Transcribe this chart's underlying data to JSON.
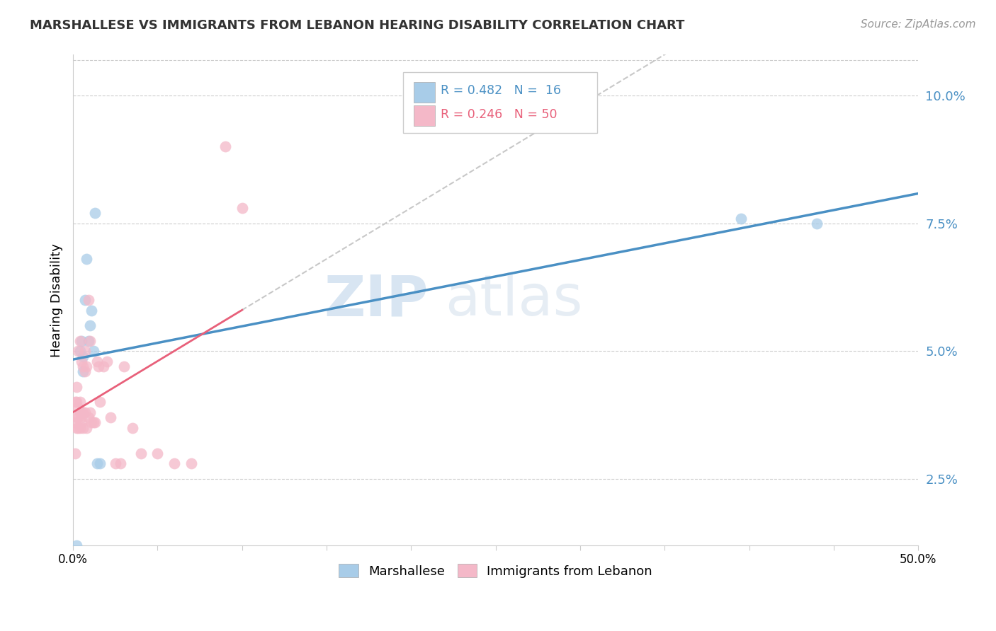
{
  "title": "MARSHALLESE VS IMMIGRANTS FROM LEBANON HEARING DISABILITY CORRELATION CHART",
  "source": "Source: ZipAtlas.com",
  "ylabel": "Hearing Disability",
  "ytick_labels": [
    "2.5%",
    "5.0%",
    "7.5%",
    "10.0%"
  ],
  "ytick_values": [
    0.025,
    0.05,
    0.075,
    0.1
  ],
  "xlim": [
    0.0,
    0.5
  ],
  "ylim": [
    0.012,
    0.108
  ],
  "color_blue": "#a8cce8",
  "color_pink": "#f4b8c8",
  "color_blue_line": "#4a90c4",
  "color_pink_line": "#e8607a",
  "color_dashed_line": "#c8c8c8",
  "watermark_text": "ZIP",
  "watermark_text2": "atlas",
  "marshallese_x": [
    0.002,
    0.004,
    0.005,
    0.006,
    0.006,
    0.007,
    0.008,
    0.009,
    0.01,
    0.011,
    0.012,
    0.013,
    0.014,
    0.016,
    0.395,
    0.44
  ],
  "marshallese_y": [
    0.012,
    0.05,
    0.052,
    0.049,
    0.046,
    0.06,
    0.068,
    0.052,
    0.055,
    0.058,
    0.05,
    0.077,
    0.028,
    0.028,
    0.076,
    0.075
  ],
  "lebanon_x": [
    0.001,
    0.001,
    0.001,
    0.002,
    0.002,
    0.002,
    0.002,
    0.003,
    0.003,
    0.003,
    0.003,
    0.004,
    0.004,
    0.004,
    0.004,
    0.005,
    0.005,
    0.005,
    0.005,
    0.006,
    0.006,
    0.006,
    0.007,
    0.007,
    0.007,
    0.008,
    0.008,
    0.009,
    0.009,
    0.01,
    0.01,
    0.011,
    0.012,
    0.013,
    0.014,
    0.015,
    0.016,
    0.018,
    0.02,
    0.022,
    0.025,
    0.028,
    0.03,
    0.035,
    0.04,
    0.05,
    0.06,
    0.07,
    0.09,
    0.1
  ],
  "lebanon_y": [
    0.03,
    0.036,
    0.04,
    0.035,
    0.037,
    0.04,
    0.043,
    0.035,
    0.037,
    0.039,
    0.05,
    0.035,
    0.038,
    0.04,
    0.052,
    0.036,
    0.037,
    0.038,
    0.048,
    0.035,
    0.038,
    0.047,
    0.038,
    0.046,
    0.05,
    0.035,
    0.047,
    0.037,
    0.06,
    0.038,
    0.052,
    0.036,
    0.036,
    0.036,
    0.048,
    0.047,
    0.04,
    0.047,
    0.048,
    0.037,
    0.028,
    0.028,
    0.047,
    0.035,
    0.03,
    0.03,
    0.028,
    0.028,
    0.09,
    0.078
  ],
  "blue_line_x0": 0.0,
  "blue_line_y0": 0.042,
  "blue_line_x1": 0.5,
  "blue_line_y1": 0.078,
  "pink_line_x0": 0.0,
  "pink_line_y0": 0.038,
  "pink_line_x1": 0.1,
  "pink_line_y1": 0.052,
  "dashed_line_x0": 0.08,
  "dashed_line_y0": 0.052,
  "dashed_line_x1": 0.5,
  "dashed_line_y1": 0.096
}
